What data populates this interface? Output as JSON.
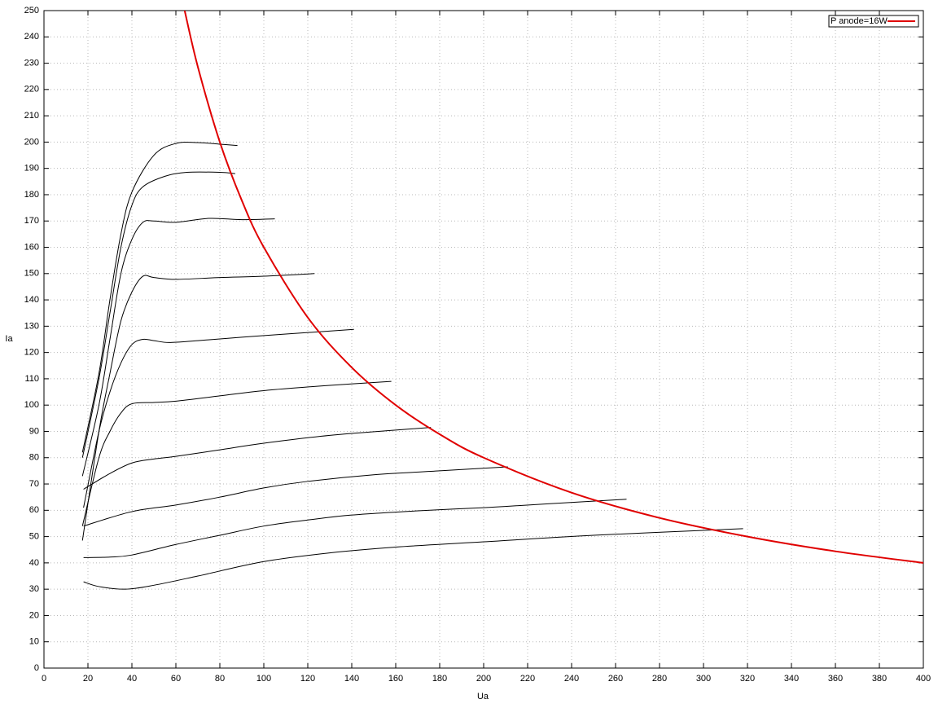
{
  "chart_data": {
    "type": "line",
    "xlabel": "Ua",
    "ylabel": "Ia",
    "xlim": [
      0,
      400
    ],
    "ylim": [
      0,
      250
    ],
    "xticks": [
      0,
      20,
      40,
      60,
      80,
      100,
      120,
      140,
      160,
      180,
      200,
      220,
      240,
      260,
      280,
      300,
      320,
      340,
      360,
      380,
      400
    ],
    "yticks": [
      0,
      10,
      20,
      30,
      40,
      50,
      60,
      70,
      80,
      90,
      100,
      110,
      120,
      130,
      140,
      150,
      160,
      170,
      180,
      190,
      200,
      210,
      220,
      230,
      240,
      250
    ],
    "grid": true,
    "legend": "top-right",
    "series": [
      {
        "color": "#000000",
        "x": [
          18,
          25,
          37,
          50,
          70,
          100,
          130,
          160,
          200,
          250,
          318
        ],
        "values": [
          32.8,
          31,
          30,
          31.5,
          35,
          40.5,
          43.8,
          46,
          48,
          50.5,
          53
        ]
      },
      {
        "color": "#000000",
        "x": [
          18,
          30,
          40,
          60,
          80,
          100,
          120,
          140,
          170,
          200,
          230,
          265
        ],
        "values": [
          42,
          42.2,
          43,
          47,
          50.5,
          54,
          56.3,
          58.2,
          59.8,
          61,
          62.5,
          64.2
        ]
      },
      {
        "color": "#000000",
        "x": [
          18,
          40,
          60,
          80,
          100,
          120,
          150,
          180,
          211
        ],
        "values": [
          54,
          59.5,
          62,
          65,
          68.5,
          71,
          73.5,
          75,
          76.5
        ]
      },
      {
        "color": "#000000",
        "x": [
          18,
          30,
          40,
          50,
          60,
          80,
          100,
          130,
          160,
          176
        ],
        "values": [
          68,
          74,
          78,
          79.5,
          80.5,
          83,
          85.5,
          88.5,
          90.5,
          91.5
        ]
      },
      {
        "color": "#000000",
        "x": [
          17.5,
          25,
          30,
          35,
          40,
          50,
          60,
          80,
          100,
          130,
          158
        ],
        "values": [
          54,
          80,
          90,
          97,
          100.5,
          101,
          101.5,
          103.5,
          105.5,
          107.5,
          109
        ]
      },
      {
        "color": "#000000",
        "x": [
          18,
          25,
          30,
          35,
          40,
          45,
          50,
          57,
          70,
          90,
          110,
          141
        ],
        "values": [
          61,
          90,
          105,
          116,
          123,
          125,
          124.5,
          123.8,
          124.5,
          125.8,
          127,
          128.8
        ]
      },
      {
        "color": "#000000",
        "x": [
          17.5,
          25,
          30,
          35,
          40,
          45,
          50,
          60,
          80,
          100,
          123
        ],
        "values": [
          48.5,
          90,
          112,
          132,
          143,
          149,
          148.5,
          147.8,
          148.5,
          149,
          150
        ]
      },
      {
        "color": "#000000",
        "x": [
          17.5,
          25,
          30,
          35,
          40,
          45,
          50,
          60,
          75,
          90,
          105
        ],
        "values": [
          73,
          100,
          125,
          150,
          163,
          169.5,
          170,
          169.5,
          171,
          170.5,
          170.8
        ]
      },
      {
        "color": "#000000",
        "x": [
          17.5,
          25,
          30,
          35,
          40,
          45,
          55,
          65,
          80,
          87
        ],
        "values": [
          80,
          110,
          135,
          160,
          176,
          183,
          187,
          188.5,
          188.5,
          188
        ]
      },
      {
        "color": "#000000",
        "x": [
          17.5,
          25,
          30,
          35,
          40,
          50,
          60,
          70,
          80,
          88
        ],
        "values": [
          82,
          112,
          140,
          165,
          181,
          195,
          199.5,
          199.8,
          199.2,
          198.7
        ]
      },
      {
        "name": "P anode=16W",
        "color": "#e00000",
        "width": 2,
        "x": [
          64,
          70,
          80,
          90,
          100,
          120,
          140,
          160,
          180,
          200,
          240,
          280,
          320,
          360,
          400
        ],
        "values": [
          250,
          228.6,
          200,
          177.8,
          160,
          133.3,
          114.3,
          100,
          88.9,
          80,
          66.7,
          57.1,
          50,
          44.4,
          40
        ]
      }
    ]
  }
}
